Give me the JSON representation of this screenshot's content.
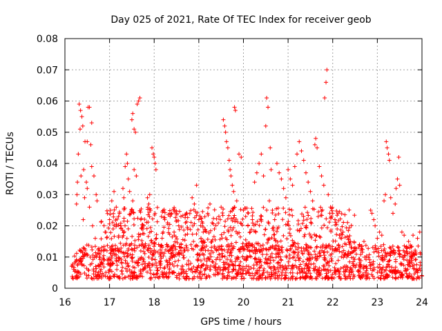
{
  "chart_data": {
    "type": "scatter",
    "title": "Day 025 of 2021, Rate Of TEC Index for receiver geob",
    "xlabel": "GPS time / hours",
    "ylabel": "ROTI / TECUs",
    "xlim": [
      16,
      24
    ],
    "ylim": [
      0,
      0.08
    ],
    "x_ticks": [
      16,
      17,
      18,
      19,
      20,
      21,
      22,
      23,
      24
    ],
    "x_tick_labels": [
      "16",
      "17",
      "18",
      "19",
      "20",
      "21",
      "22",
      "23",
      "24"
    ],
    "y_ticks": [
      0,
      0.01,
      0.02,
      0.03,
      0.04,
      0.05,
      0.06,
      0.07,
      0.08
    ],
    "y_tick_labels": [
      "0",
      "0.01",
      "0.02",
      "0.03",
      "0.04",
      "0.05",
      "0.06",
      "0.07",
      "0.08"
    ],
    "grid": true,
    "marker": "+",
    "series_color": "#ff0000",
    "background_band": {
      "x_range": [
        16.15,
        24.0
      ],
      "y_range": [
        0.003,
        0.014
      ],
      "note": "dense continuous cloud of points"
    },
    "series": [
      {
        "name": "ROTI",
        "points": [
          [
            16.32,
            0.059
          ],
          [
            16.35,
            0.057
          ],
          [
            16.38,
            0.055
          ],
          [
            16.4,
            0.052
          ],
          [
            16.34,
            0.051
          ],
          [
            16.3,
            0.043
          ],
          [
            16.28,
            0.034
          ],
          [
            16.27,
            0.03
          ],
          [
            16.26,
            0.027
          ],
          [
            16.45,
            0.047
          ],
          [
            16.5,
            0.047
          ],
          [
            16.52,
            0.058
          ],
          [
            16.55,
            0.058
          ],
          [
            16.6,
            0.053
          ],
          [
            16.58,
            0.046
          ],
          [
            16.6,
            0.039
          ],
          [
            16.65,
            0.036
          ],
          [
            16.7,
            0.03
          ],
          [
            16.72,
            0.028
          ],
          [
            16.48,
            0.034
          ],
          [
            16.5,
            0.032
          ],
          [
            16.55,
            0.026
          ],
          [
            16.62,
            0.02
          ],
          [
            16.68,
            0.016
          ],
          [
            16.42,
            0.038
          ],
          [
            16.44,
            0.029
          ],
          [
            16.36,
            0.036
          ],
          [
            16.41,
            0.022
          ],
          [
            16.9,
            0.018
          ],
          [
            17.0,
            0.022
          ],
          [
            17.02,
            0.025
          ],
          [
            17.05,
            0.028
          ],
          [
            17.08,
            0.019
          ],
          [
            17.1,
            0.031
          ],
          [
            17.15,
            0.026
          ],
          [
            17.2,
            0.023
          ],
          [
            17.25,
            0.02
          ],
          [
            17.3,
            0.032
          ],
          [
            17.32,
            0.029
          ],
          [
            17.35,
            0.039
          ],
          [
            17.38,
            0.043
          ],
          [
            17.4,
            0.04
          ],
          [
            17.42,
            0.035
          ],
          [
            17.45,
            0.031
          ],
          [
            17.5,
            0.054
          ],
          [
            17.52,
            0.056
          ],
          [
            17.55,
            0.051
          ],
          [
            17.58,
            0.05
          ],
          [
            17.62,
            0.059
          ],
          [
            17.65,
            0.06
          ],
          [
            17.68,
            0.061
          ],
          [
            17.55,
            0.038
          ],
          [
            17.6,
            0.036
          ],
          [
            17.52,
            0.028
          ],
          [
            17.48,
            0.024
          ],
          [
            17.7,
            0.022
          ],
          [
            17.75,
            0.019
          ],
          [
            17.85,
            0.029
          ],
          [
            17.88,
            0.027
          ],
          [
            17.9,
            0.03
          ],
          [
            17.95,
            0.045
          ],
          [
            17.98,
            0.043
          ],
          [
            18.0,
            0.042
          ],
          [
            18.02,
            0.04
          ],
          [
            18.04,
            0.038
          ],
          [
            17.92,
            0.025
          ],
          [
            18.05,
            0.016
          ],
          [
            18.1,
            0.014
          ],
          [
            18.2,
            0.018
          ],
          [
            18.3,
            0.021
          ],
          [
            18.35,
            0.024
          ],
          [
            18.45,
            0.017
          ],
          [
            18.55,
            0.02
          ],
          [
            18.6,
            0.023
          ],
          [
            18.7,
            0.021
          ],
          [
            18.75,
            0.019
          ],
          [
            18.85,
            0.029
          ],
          [
            18.9,
            0.027
          ],
          [
            18.95,
            0.033
          ],
          [
            19.0,
            0.022
          ],
          [
            18.88,
            0.015
          ],
          [
            19.05,
            0.016
          ],
          [
            19.1,
            0.018
          ],
          [
            19.2,
            0.024
          ],
          [
            19.25,
            0.027
          ],
          [
            19.3,
            0.021
          ],
          [
            19.35,
            0.019
          ],
          [
            19.45,
            0.023
          ],
          [
            19.5,
            0.026
          ],
          [
            19.55,
            0.054
          ],
          [
            19.58,
            0.052
          ],
          [
            19.6,
            0.05
          ],
          [
            19.62,
            0.047
          ],
          [
            19.65,
            0.045
          ],
          [
            19.68,
            0.041
          ],
          [
            19.7,
            0.038
          ],
          [
            19.72,
            0.036
          ],
          [
            19.75,
            0.033
          ],
          [
            19.8,
            0.058
          ],
          [
            19.82,
            0.057
          ],
          [
            19.78,
            0.031
          ],
          [
            19.85,
            0.028
          ],
          [
            19.9,
            0.043
          ],
          [
            19.95,
            0.042
          ],
          [
            20.0,
            0.025
          ],
          [
            20.05,
            0.023
          ],
          [
            20.1,
            0.02
          ],
          [
            20.15,
            0.018
          ],
          [
            20.2,
            0.022
          ],
          [
            20.25,
            0.034
          ],
          [
            20.3,
            0.037
          ],
          [
            20.35,
            0.04
          ],
          [
            20.4,
            0.043
          ],
          [
            20.45,
            0.036
          ],
          [
            20.5,
            0.052
          ],
          [
            20.52,
            0.061
          ],
          [
            20.55,
            0.058
          ],
          [
            20.6,
            0.045
          ],
          [
            20.62,
            0.038
          ],
          [
            20.58,
            0.028
          ],
          [
            20.65,
            0.025
          ],
          [
            20.7,
            0.022
          ],
          [
            20.75,
            0.04
          ],
          [
            20.8,
            0.037
          ],
          [
            20.85,
            0.035
          ],
          [
            20.9,
            0.032
          ],
          [
            20.95,
            0.029
          ],
          [
            21.0,
            0.038
          ],
          [
            21.05,
            0.035
          ],
          [
            21.1,
            0.033
          ],
          [
            21.15,
            0.039
          ],
          [
            21.2,
            0.043
          ],
          [
            21.25,
            0.047
          ],
          [
            21.3,
            0.044
          ],
          [
            21.35,
            0.041
          ],
          [
            21.4,
            0.037
          ],
          [
            21.45,
            0.034
          ],
          [
            21.5,
            0.031
          ],
          [
            21.55,
            0.028
          ],
          [
            21.6,
            0.046
          ],
          [
            21.62,
            0.048
          ],
          [
            21.65,
            0.045
          ],
          [
            21.7,
            0.039
          ],
          [
            21.75,
            0.036
          ],
          [
            21.8,
            0.033
          ],
          [
            21.82,
            0.061
          ],
          [
            21.85,
            0.066
          ],
          [
            21.87,
            0.07
          ],
          [
            21.9,
            0.03
          ],
          [
            21.95,
            0.026
          ],
          [
            22.0,
            0.024
          ],
          [
            22.05,
            0.022
          ],
          [
            22.1,
            0.019
          ],
          [
            22.15,
            0.017
          ],
          [
            22.2,
            0.016
          ],
          [
            22.3,
            0.014
          ],
          [
            22.4,
            0.015
          ],
          [
            22.5,
            0.013
          ],
          [
            22.6,
            0.014
          ],
          [
            22.7,
            0.015
          ],
          [
            22.85,
            0.025
          ],
          [
            22.88,
            0.024
          ],
          [
            22.92,
            0.022
          ],
          [
            22.95,
            0.02
          ],
          [
            23.0,
            0.016
          ],
          [
            23.05,
            0.018
          ],
          [
            23.1,
            0.017
          ],
          [
            23.15,
            0.028
          ],
          [
            23.18,
            0.03
          ],
          [
            23.2,
            0.047
          ],
          [
            23.22,
            0.045
          ],
          [
            23.25,
            0.043
          ],
          [
            23.27,
            0.041
          ],
          [
            23.3,
            0.029
          ],
          [
            23.35,
            0.024
          ],
          [
            23.4,
            0.027
          ],
          [
            23.42,
            0.032
          ],
          [
            23.45,
            0.035
          ],
          [
            23.48,
            0.042
          ],
          [
            23.5,
            0.033
          ],
          [
            23.55,
            0.018
          ],
          [
            23.6,
            0.017
          ],
          [
            23.7,
            0.015
          ],
          [
            23.8,
            0.017
          ],
          [
            23.9,
            0.016
          ],
          [
            23.95,
            0.018
          ]
        ]
      }
    ]
  }
}
